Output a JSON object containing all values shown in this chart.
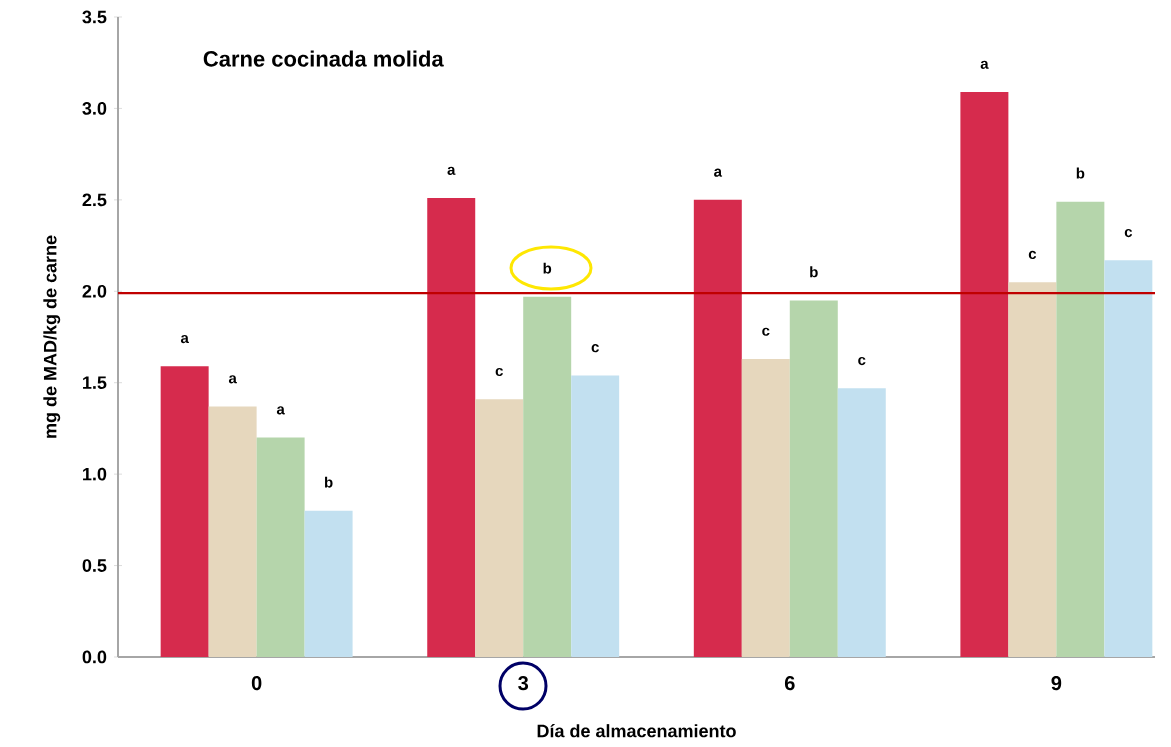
{
  "chart_data": {
    "type": "bar",
    "title": "Carne cocinada  molida",
    "xlabel": "Día de almacenamiento",
    "ylabel": "mg de MAD/kg de carne",
    "categories": [
      "0",
      "3",
      "6",
      "9"
    ],
    "series": [
      {
        "color": "#d62b4d",
        "values": [
          1.59,
          2.51,
          2.5,
          3.09
        ],
        "value_labels": [
          "a",
          "a",
          "a",
          "a"
        ]
      },
      {
        "color": "#e6d7bd",
        "values": [
          1.37,
          1.41,
          1.63,
          2.05
        ],
        "value_labels": [
          "a",
          "c",
          "c",
          "c"
        ]
      },
      {
        "color": "#b5d5ab",
        "values": [
          1.2,
          1.97,
          1.95,
          2.49
        ],
        "value_labels": [
          "a",
          "b",
          "b",
          "b"
        ]
      },
      {
        "color": "#c2e0f0",
        "values": [
          0.8,
          1.54,
          1.47,
          2.17
        ],
        "value_labels": [
          "b",
          "c",
          "c",
          "c"
        ]
      }
    ],
    "ylim": [
      0,
      3.5
    ],
    "yticks": [
      {
        "value": 0,
        "label": "0.0"
      },
      {
        "value": 0.5,
        "label": "0.5"
      },
      {
        "value": 1,
        "label": "1.0"
      },
      {
        "value": 1.5,
        "label": "1.5"
      },
      {
        "value": 2,
        "label": "2.0"
      },
      {
        "value": 2.5,
        "label": "2.5"
      },
      {
        "value": 3,
        "label": "3.0"
      },
      {
        "value": 3.5,
        "label": "3.5"
      }
    ],
    "ref_lines": [
      {
        "axis": "y",
        "value": 1.99,
        "color": "#c00000"
      }
    ],
    "grid": false
  }
}
